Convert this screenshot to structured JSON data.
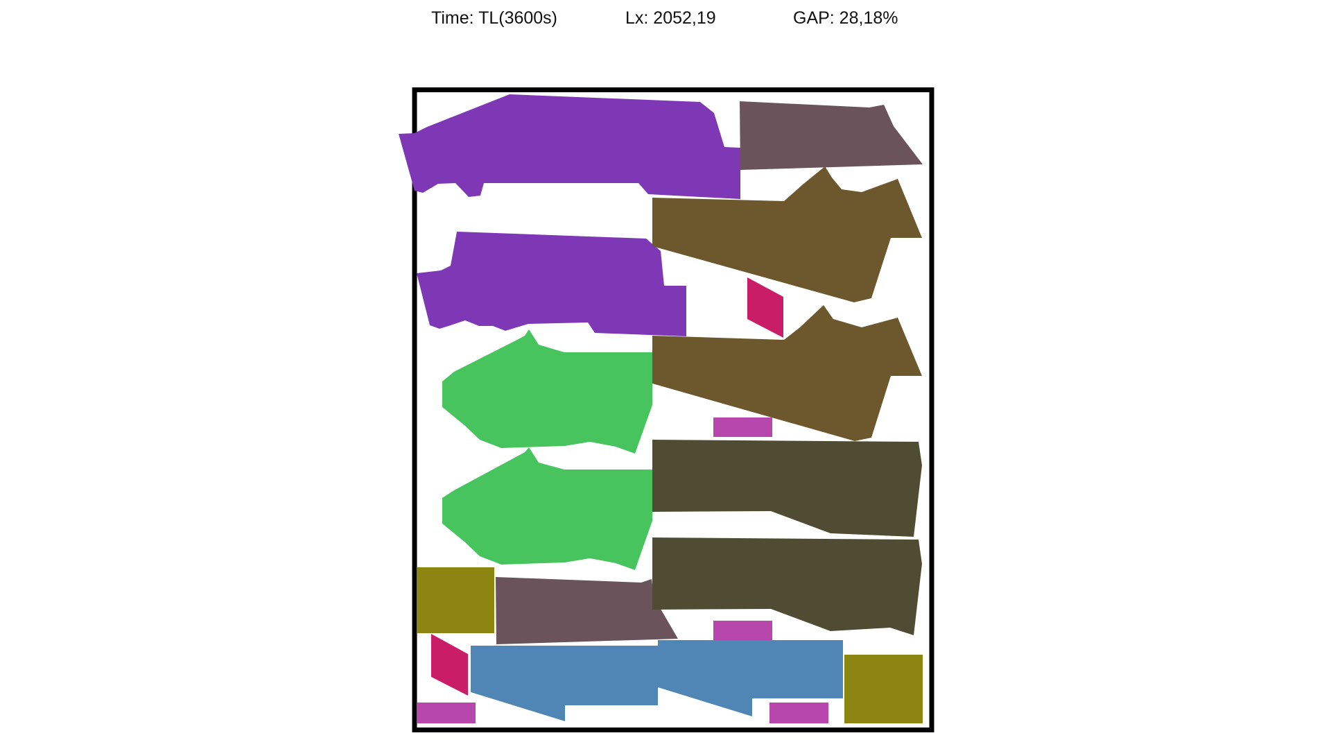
{
  "header": {
    "time": "Time: TL(3600s)",
    "lx": "Lx: 2052,19",
    "gap": "GAP: 28,18%"
  },
  "colors": {
    "background": "#ffffff",
    "container_border": "#000000",
    "purple": "#7e38b6",
    "mauve": "#6a535a",
    "brown": "#6c582c",
    "green": "#47c45e",
    "dark_olive": "#504c33",
    "olive": "#8c8512",
    "crimson": "#c91d68",
    "magenta": "#b847ad",
    "steel_blue": "#4f86b5"
  },
  "pieces": [
    {
      "name": "piece-purple-1",
      "color": "purple"
    },
    {
      "name": "piece-purple-2",
      "color": "purple"
    },
    {
      "name": "piece-mauve-1",
      "color": "mauve"
    },
    {
      "name": "piece-mauve-2",
      "color": "mauve"
    },
    {
      "name": "piece-brown-1",
      "color": "brown"
    },
    {
      "name": "piece-brown-2",
      "color": "brown"
    },
    {
      "name": "piece-green-1",
      "color": "green"
    },
    {
      "name": "piece-green-2",
      "color": "green"
    },
    {
      "name": "piece-dark-olive-1",
      "color": "dark_olive"
    },
    {
      "name": "piece-dark-olive-2",
      "color": "dark_olive"
    },
    {
      "name": "piece-olive-1",
      "color": "olive"
    },
    {
      "name": "piece-olive-2",
      "color": "olive"
    },
    {
      "name": "piece-crimson-1",
      "color": "crimson"
    },
    {
      "name": "piece-crimson-2",
      "color": "crimson"
    },
    {
      "name": "piece-magenta-1",
      "color": "magenta"
    },
    {
      "name": "piece-magenta-2",
      "color": "magenta"
    },
    {
      "name": "piece-magenta-3",
      "color": "magenta"
    },
    {
      "name": "piece-magenta-4",
      "color": "magenta"
    },
    {
      "name": "piece-blue-1",
      "color": "steel_blue"
    },
    {
      "name": "piece-blue-2",
      "color": "steel_blue"
    }
  ]
}
